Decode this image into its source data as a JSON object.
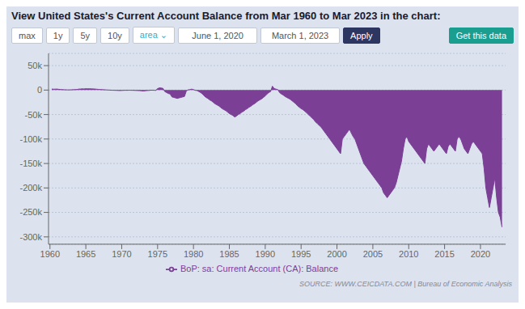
{
  "chart_data": {
    "type": "area",
    "title": "View United States's Current Account Balance from Mar 1960 to Mar 2023 in the chart:",
    "annotations": [
      "max",
      "1y",
      "5y",
      "10y",
      "area  ⌄",
      "June 1, 2020",
      "March 1, 2023",
      "Apply",
      "Get this data",
      "SOURCE: WWW.CEICDATA.COM | Bureau of Economic Analysis"
    ],
    "x": [
      1960.25,
      1960.5,
      1960.75,
      1961.0,
      1961.25,
      1961.5,
      1961.75,
      1962.0,
      1962.25,
      1962.5,
      1962.75,
      1963.0,
      1963.25,
      1963.5,
      1963.75,
      1964.0,
      1964.25,
      1964.5,
      1964.75,
      1965.0,
      1965.25,
      1965.5,
      1965.75,
      1966.0,
      1966.25,
      1966.5,
      1966.75,
      1967.0,
      1967.25,
      1967.5,
      1967.75,
      1968.0,
      1968.25,
      1968.5,
      1968.75,
      1969.0,
      1969.25,
      1969.5,
      1969.75,
      1970.0,
      1970.25,
      1970.5,
      1970.75,
      1971.0,
      1971.25,
      1971.5,
      1971.75,
      1972.0,
      1972.25,
      1972.5,
      1972.75,
      1973.0,
      1973.25,
      1973.5,
      1973.75,
      1974.0,
      1974.25,
      1974.5,
      1974.75,
      1975.0,
      1975.25,
      1975.5,
      1975.75,
      1976.0,
      1976.25,
      1976.5,
      1976.75,
      1977.0,
      1977.25,
      1977.5,
      1977.75,
      1978.0,
      1978.25,
      1978.5,
      1978.75,
      1979.0,
      1979.25,
      1979.5,
      1979.75,
      1980.0,
      1980.25,
      1980.5,
      1980.75,
      1981.0,
      1981.25,
      1981.5,
      1981.75,
      1982.0,
      1982.25,
      1982.5,
      1982.75,
      1983.0,
      1983.25,
      1983.5,
      1983.75,
      1984.0,
      1984.25,
      1984.5,
      1984.75,
      1985.0,
      1985.25,
      1985.5,
      1985.75,
      1986.0,
      1986.25,
      1986.5,
      1986.75,
      1987.0,
      1987.25,
      1987.5,
      1987.75,
      1988.0,
      1988.25,
      1988.5,
      1988.75,
      1989.0,
      1989.25,
      1989.5,
      1989.75,
      1990.0,
      1990.25,
      1990.5,
      1990.75,
      1991.0,
      1991.25,
      1991.5,
      1991.75,
      1992.0,
      1992.25,
      1992.5,
      1992.75,
      1993.0,
      1993.25,
      1993.5,
      1993.75,
      1994.0,
      1994.25,
      1994.5,
      1994.75,
      1995.0,
      1995.25,
      1995.5,
      1995.75,
      1996.0,
      1996.25,
      1996.5,
      1996.75,
      1997.0,
      1997.25,
      1997.5,
      1997.75,
      1998.0,
      1998.25,
      1998.5,
      1998.75,
      1999.0,
      1999.25,
      1999.5,
      1999.75,
      2000.0,
      2000.25,
      2000.5,
      2000.75,
      2001.0,
      2001.25,
      2001.5,
      2001.75,
      2002.0,
      2002.25,
      2002.5,
      2002.75,
      2003.0,
      2003.25,
      2003.5,
      2003.75,
      2004.0,
      2004.25,
      2004.5,
      2004.75,
      2005.0,
      2005.25,
      2005.5,
      2005.75,
      2006.0,
      2006.25,
      2006.5,
      2006.75,
      2007.0,
      2007.25,
      2007.5,
      2007.75,
      2008.0,
      2008.25,
      2008.5,
      2008.75,
      2009.0,
      2009.25,
      2009.5,
      2009.75,
      2010.0,
      2010.25,
      2010.5,
      2010.75,
      2011.0,
      2011.25,
      2011.5,
      2011.75,
      2012.0,
      2012.25,
      2012.5,
      2012.75,
      2013.0,
      2013.25,
      2013.5,
      2013.75,
      2014.0,
      2014.25,
      2014.5,
      2014.75,
      2015.0,
      2015.25,
      2015.5,
      2015.75,
      2016.0,
      2016.25,
      2016.5,
      2016.75,
      2017.0,
      2017.25,
      2017.5,
      2017.75,
      2018.0,
      2018.25,
      2018.5,
      2018.75,
      2019.0,
      2019.25,
      2019.5,
      2019.75,
      2020.0,
      2020.25,
      2020.5,
      2020.75,
      2021.0,
      2021.25,
      2021.5,
      2021.75,
      2022.0,
      2022.25,
      2022.5,
      2022.75,
      2023.0
    ],
    "series": [
      {
        "name": "BoP: sa: Current Account (CA): Balance",
        "color": "#7b3f96",
        "values": [
          2200,
          1800,
          2000,
          2100,
          1500,
          1200,
          1000,
          800,
          600,
          400,
          500,
          700,
          900,
          1100,
          1200,
          2000,
          2200,
          2500,
          2300,
          2800,
          2600,
          2700,
          2500,
          2400,
          2200,
          1800,
          1500,
          1200,
          1000,
          800,
          600,
          200,
          100,
          -200,
          -300,
          -500,
          -600,
          -800,
          -1000,
          -800,
          -600,
          -400,
          -500,
          -300,
          -400,
          -500,
          -600,
          -800,
          -1000,
          -1200,
          -1500,
          -2000,
          -1500,
          -1000,
          -800,
          -300,
          -200,
          -400,
          -600,
          3000,
          4500,
          4200,
          3500,
          -3000,
          -5000,
          -7000,
          -8000,
          -14000,
          -15000,
          -16000,
          -17000,
          -16000,
          -15000,
          -14000,
          -13000,
          -2000,
          500,
          1000,
          2000,
          1000,
          -500,
          -1000,
          -3000,
          -5000,
          -8000,
          -12000,
          -15000,
          -17000,
          -20000,
          -22000,
          -25000,
          -28000,
          -30000,
          -32000,
          -35000,
          -38000,
          -40000,
          -42000,
          -45000,
          -48000,
          -50000,
          -52000,
          -55000,
          -53000,
          -50000,
          -48000,
          -45000,
          -43000,
          -40000,
          -38000,
          -35000,
          -33000,
          -30000,
          -28000,
          -25000,
          -22000,
          -20000,
          -18000,
          -15000,
          -12000,
          -8000,
          -5000,
          -3000,
          8000,
          3000,
          2000,
          1000,
          -5000,
          -8000,
          -10000,
          -13000,
          -15000,
          -17000,
          -19000,
          -22000,
          -25000,
          -28000,
          -32000,
          -35000,
          -38000,
          -40000,
          -43000,
          -46000,
          -50000,
          -53000,
          -57000,
          -60000,
          -65000,
          -68000,
          -72000,
          -75000,
          -80000,
          -85000,
          -90000,
          -95000,
          -100000,
          -105000,
          -110000,
          -115000,
          -120000,
          -125000,
          -130000,
          -100000,
          -95000,
          -90000,
          -85000,
          -80000,
          -88000,
          -95000,
          -100000,
          -110000,
          -120000,
          -130000,
          -140000,
          -150000,
          -155000,
          -160000,
          -165000,
          -170000,
          -175000,
          -180000,
          -185000,
          -190000,
          -195000,
          -200000,
          -210000,
          -215000,
          -220000,
          -215000,
          -210000,
          -205000,
          -200000,
          -190000,
          -175000,
          -160000,
          -145000,
          -120000,
          -100000,
          -95000,
          -105000,
          -110000,
          -115000,
          -120000,
          -125000,
          -130000,
          -135000,
          -140000,
          -145000,
          -150000,
          -120000,
          -110000,
          -115000,
          -120000,
          -125000,
          -120000,
          -115000,
          -110000,
          -115000,
          -120000,
          -125000,
          -130000,
          -115000,
          -110000,
          -115000,
          -120000,
          -125000,
          -100000,
          -95000,
          -100000,
          -110000,
          -120000,
          -125000,
          -130000,
          -120000,
          -110000,
          -105000,
          -110000,
          -115000,
          -120000,
          -125000,
          -130000,
          -160000,
          -200000,
          -220000,
          -240000,
          -220000,
          -200000,
          -180000,
          -220000,
          -250000,
          -260000,
          -280000
        ]
      }
    ],
    "xlim": [
      1959.8,
      2023.5
    ],
    "ylim": [
      -315000,
      75000
    ],
    "xticks": [
      1960,
      1965,
      1970,
      1975,
      1980,
      1985,
      1990,
      1995,
      2000,
      2005,
      2010,
      2015,
      2020
    ],
    "yticks": [
      {
        "value": 50000,
        "label": "50k"
      },
      0,
      {
        "value": -50000,
        "label": "-50k"
      },
      {
        "value": -100000,
        "label": "-100k"
      },
      {
        "value": -150000,
        "label": "-150k"
      },
      {
        "value": -200000,
        "label": "-200k"
      },
      {
        "value": -250000,
        "label": "-250k"
      },
      {
        "value": -300000,
        "label": "-300k"
      }
    ],
    "grid": true,
    "legend": "bottom"
  }
}
